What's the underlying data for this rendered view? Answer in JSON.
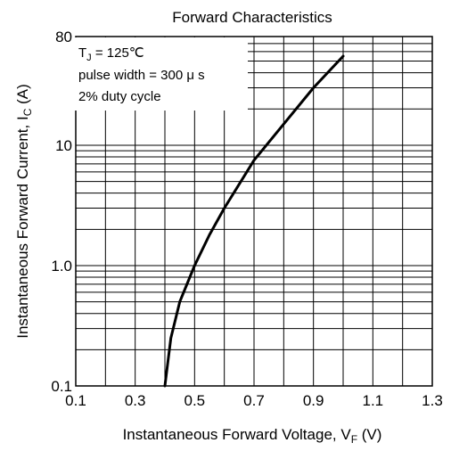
{
  "chart_data": {
    "type": "line",
    "title": "Forward Characteristics",
    "xlabel": {
      "main": "Instantaneous Forward Voltage, V",
      "sub": "F",
      "unit": " (V)"
    },
    "ylabel": {
      "main": "Instantaneous Forward Current, I",
      "sub": "C",
      "unit": " (A)"
    },
    "xscale": "linear",
    "yscale": "log",
    "xlim": [
      0.1,
      1.3
    ],
    "ylim": [
      0.1,
      80
    ],
    "xticks": [
      "0.1",
      "0.3",
      "0.5",
      "0.7",
      "0.9",
      "1.1",
      "1.3"
    ],
    "yticks": [
      {
        "label": "0.1",
        "value": 0.1
      },
      {
        "label": "1.0",
        "value": 1
      },
      {
        "label": "10",
        "value": 10
      },
      {
        "label": "80",
        "value": 80
      }
    ],
    "grid": true,
    "annotations": [
      {
        "main": "T",
        "sub": "J",
        "rest": " = 125℃"
      },
      {
        "main": "pulse width = 300 μ s",
        "sub": "",
        "rest": ""
      },
      {
        "main": "2% duty cycle",
        "sub": "",
        "rest": ""
      }
    ],
    "series": [
      {
        "x": [
          0.4,
          0.42,
          0.45,
          0.5,
          0.55,
          0.6,
          0.7,
          0.8,
          0.9,
          1.0
        ],
        "y": [
          0.1,
          0.25,
          0.5,
          1.0,
          1.8,
          3.0,
          7.5,
          15,
          30,
          55
        ]
      }
    ]
  }
}
